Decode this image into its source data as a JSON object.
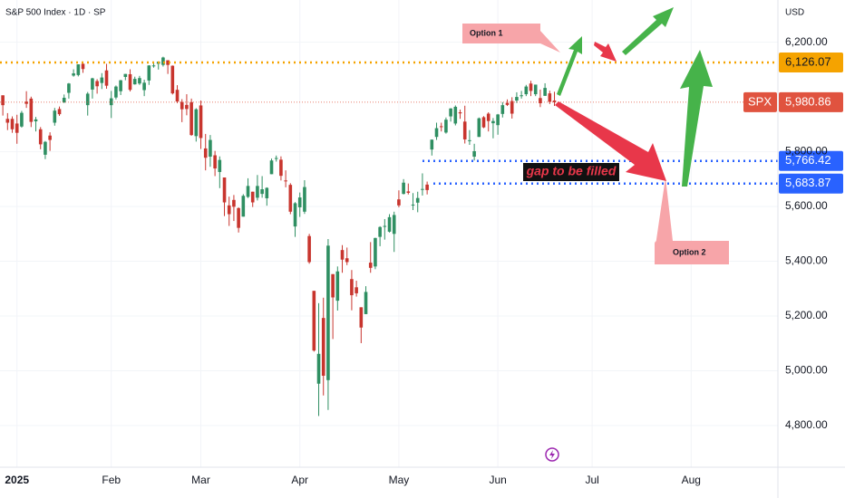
{
  "chart_data": {
    "type": "candlestick",
    "title": "S&P 500 Index · 1D · SP",
    "currency": "USD",
    "up_color": "#2f8f62",
    "down_color": "#c8352e",
    "grid": true,
    "x": [
      0,
      1,
      2,
      3,
      4,
      5,
      6,
      7,
      8,
      9,
      10,
      11,
      12,
      13,
      14,
      15,
      16,
      17,
      18,
      19,
      20,
      21,
      22,
      23,
      24,
      25,
      26,
      27,
      28,
      29,
      30,
      31,
      32,
      33,
      34,
      35,
      36,
      37,
      38,
      39,
      40,
      41,
      42,
      43,
      44,
      45,
      46,
      47,
      48,
      49,
      50,
      51,
      52,
      53,
      54,
      55,
      56,
      57,
      58,
      59,
      60,
      61,
      62,
      63,
      64,
      65,
      66,
      67,
      68,
      69,
      70,
      71,
      72,
      73,
      74,
      75,
      76,
      77,
      78,
      79,
      80,
      81,
      82,
      83,
      84,
      85,
      86,
      87,
      88,
      89,
      90,
      91,
      92,
      93,
      94,
      95,
      96,
      97,
      98,
      99,
      100,
      101,
      102,
      103,
      104,
      105,
      106,
      107,
      108,
      109,
      110,
      111,
      112,
      113,
      114,
      115,
      116,
      117
    ],
    "open": [
      6006,
      5920,
      5920,
      5903,
      5892,
      5983,
      5994,
      5911,
      5882,
      5789,
      5859,
      5906,
      5956,
      5980,
      6015,
      6078,
      6080,
      6121,
      5970,
      6027,
      6058,
      6051,
      6097,
      5970,
      5998,
      6021,
      6073,
      6083,
      6046,
      6049,
      6025,
      6060,
      6115,
      6121,
      6117,
      6134,
      6114,
      6026,
      5982,
      5971,
      5981,
      5857,
      5969,
      5812,
      5782,
      5787,
      5726,
      5706,
      5604,
      5624,
      5594,
      5563,
      5635,
      5654,
      5632,
      5646,
      5630,
      5718,
      5775,
      5771,
      5695,
      5679,
      5527,
      5597,
      5581,
      5492,
      5292,
      4953,
      5193,
      4966,
      5353,
      5256,
      5441,
      5411,
      5335,
      5305,
      5232,
      5207,
      5395,
      5381,
      5489,
      5529,
      5508,
      5500,
      5626,
      5646,
      5655,
      5606,
      5614,
      5663,
      5680,
      5808,
      5854,
      5893,
      5870,
      5929,
      5903,
      5944,
      5910,
      5842,
      5782,
      5854,
      5926,
      5939,
      5904,
      5897,
      5938,
      5978,
      5985,
      5987,
      6005,
      6010,
      6049,
      6010,
      5996,
      6004,
      6013,
      5987
    ],
    "high": [
      6006,
      5941,
      5929,
      5935,
      5949,
      6021,
      6001,
      5927,
      5890,
      5839,
      5871,
      5960,
      5965,
      6009,
      6051,
      6101,
      6119,
      6128,
      6018,
      6070,
      6065,
      6087,
      6121,
      6022,
      6042,
      6062,
      6084,
      6101,
      6074,
      6077,
      6063,
      6116,
      6127,
      6129,
      6147,
      6134,
      6115,
      6043,
      5992,
      6010,
      5994,
      5959,
      5987,
      5865,
      5861,
      5803,
      5783,
      5706,
      5636,
      5642,
      5597,
      5645,
      5703,
      5654,
      5715,
      5711,
      5670,
      5775,
      5786,
      5783,
      5732,
      5685,
      5616,
      5651,
      5696,
      5500,
      5292,
      5247,
      5267,
      5481,
      5353,
      5381,
      5459,
      5450,
      5368,
      5329,
      5232,
      5309,
      5470,
      5486,
      5528,
      5554,
      5572,
      5581,
      5659,
      5700,
      5684,
      5649,
      5654,
      5721,
      5691,
      5845,
      5906,
      5906,
      5925,
      5959,
      5969,
      5954,
      5968,
      5879,
      5829,
      5925,
      5930,
      5944,
      5923,
      5938,
      5981,
      5991,
      5999,
      6017,
      6022,
      6044,
      6059,
      6045,
      6027,
      6050,
      6023,
      6019
    ],
    "low": [
      5932,
      5879,
      5869,
      5829,
      5888,
      5960,
      5890,
      5874,
      5809,
      5773,
      5803,
      5895,
      5931,
      5978,
      5994,
      6074,
      6075,
      6088,
      5932,
      5994,
      6012,
      6029,
      6030,
      5923,
      5991,
      6007,
      6061,
      6020,
      6045,
      6044,
      6003,
      6044,
      6107,
      6100,
      6111,
      6084,
      6009,
      5977,
      5908,
      5933,
      5858,
      5837,
      5810,
      5732,
      5745,
      5711,
      5667,
      5565,
      5529,
      5547,
      5505,
      5563,
      5631,
      5598,
      5622,
      5632,
      5603,
      5718,
      5764,
      5695,
      5670,
      5572,
      5489,
      5562,
      5573,
      5391,
      5070,
      4835,
      4910,
      4857,
      5116,
      5220,
      5358,
      5386,
      5221,
      5271,
      5101,
      5207,
      5358,
      5371,
      5455,
      5479,
      5505,
      5434,
      5597,
      5644,
      5644,
      5587,
      5579,
      5640,
      5644,
      5786,
      5843,
      5874,
      5866,
      5910,
      5896,
      5920,
      5830,
      5825,
      5768,
      5854,
      5886,
      5874,
      5849,
      5862,
      5925,
      5967,
      5921,
      5978,
      5994,
      6003,
      6003,
      6003,
      5963,
      6004,
      5974,
      5967
    ],
    "close": [
      5970,
      5906,
      5882,
      5869,
      5942,
      5975,
      5909,
      5918,
      5827,
      5836,
      5843,
      5950,
      5937,
      5997,
      6049,
      6086,
      6119,
      6102,
      6012,
      6068,
      6039,
      6071,
      6041,
      5995,
      6038,
      6061,
      6084,
      6026,
      6066,
      6069,
      6052,
      6115,
      6115,
      6129,
      6144,
      6117,
      6013,
      5983,
      5955,
      5956,
      5861,
      5955,
      5850,
      5778,
      5843,
      5739,
      5770,
      5615,
      5572,
      5599,
      5522,
      5639,
      5675,
      5615,
      5675,
      5663,
      5668,
      5768,
      5777,
      5712,
      5693,
      5581,
      5612,
      5633,
      5671,
      5397,
      5074,
      5062,
      4982,
      5457,
      5268,
      5363,
      5406,
      5397,
      5276,
      5283,
      5158,
      5288,
      5376,
      5485,
      5525,
      5529,
      5561,
      5569,
      5604,
      5687,
      5650,
      5607,
      5631,
      5664,
      5660,
      5844,
      5886,
      5892,
      5917,
      5958,
      5964,
      5940,
      5845,
      5842,
      5802,
      5922,
      5889,
      5912,
      5912,
      5936,
      5970,
      5971,
      5939,
      6000,
      6006,
      6038,
      6022,
      6045,
      5977,
      6033,
      5982,
      5980.86
    ],
    "xlim": [
      -0.6,
      164.4
    ],
    "xticks": [
      {
        "value": 3,
        "label": "2025"
      },
      {
        "value": 23,
        "label": "Feb"
      },
      {
        "value": 42,
        "label": "Mar"
      },
      {
        "value": 63,
        "label": "Apr"
      },
      {
        "value": 84,
        "label": "May"
      },
      {
        "value": 105,
        "label": "Jun"
      },
      {
        "value": 125,
        "label": "Jul"
      },
      {
        "value": 146,
        "label": "Aug"
      }
    ],
    "ylim": [
      4648,
      6354
    ],
    "yticks": [
      {
        "value": 4800,
        "label": "4,800.00"
      },
      {
        "value": 5000,
        "label": "5,000.00"
      },
      {
        "value": 5200,
        "label": "5,200.00"
      },
      {
        "value": 5400,
        "label": "5,400.00"
      },
      {
        "value": 5600,
        "label": "5,600.00"
      },
      {
        "value": 5800,
        "label": "5,800.00"
      },
      {
        "value": 6200,
        "label": "6,200.00"
      }
    ],
    "levels": [
      {
        "value": 6126.07,
        "label": "6,126.07",
        "color": "#f5a300"
      },
      {
        "value": 5766.42,
        "label": "5,766.42",
        "color": "#2962ff"
      },
      {
        "value": 5683.87,
        "label": "5,683.87",
        "color": "#2962ff"
      }
    ],
    "last_price": {
      "name": "SPX",
      "value": 5980.86,
      "label": "5,980.86",
      "color": "#e0533f"
    },
    "annotations": {
      "option1": "Option 1",
      "option2": "Option 2",
      "gap": "gap to be filled"
    }
  }
}
